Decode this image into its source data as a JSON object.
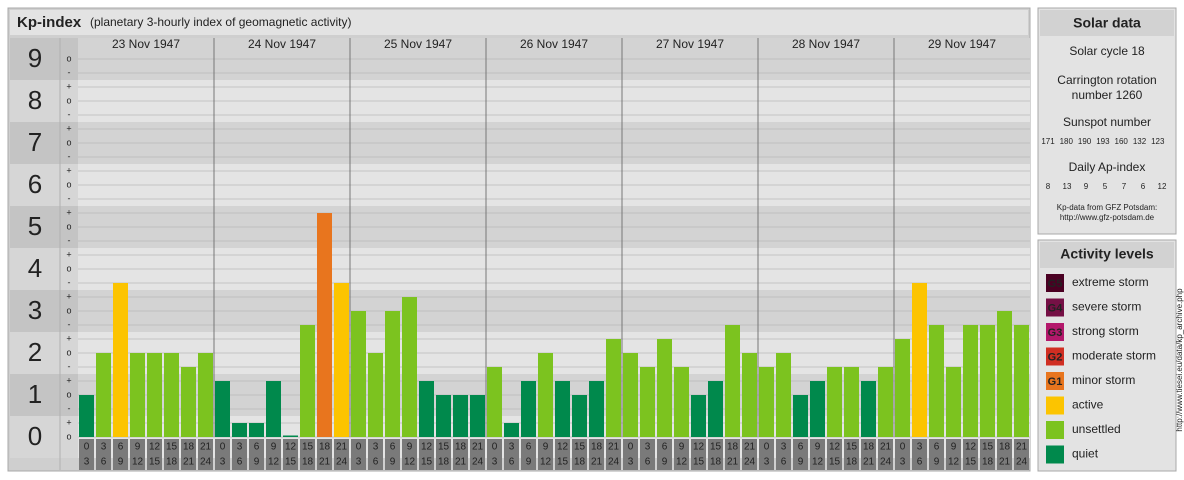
{
  "chart_data": {
    "type": "bar",
    "title": "Kp-index",
    "subtitle": "(planetary 3-hourly index of geomagnetic activity)",
    "ylim": [
      0,
      9.5
    ],
    "yticks": [
      0,
      1,
      2,
      3,
      4,
      5,
      6,
      7,
      8,
      9
    ],
    "minor_yticks": [
      {
        "value": 0,
        "label": "o"
      },
      {
        "value": 0.333,
        "label": "+"
      },
      {
        "value": 0.667,
        "label": "-"
      },
      {
        "value": 1,
        "label": "o"
      },
      {
        "value": 1.333,
        "label": "+"
      },
      {
        "value": 1.667,
        "label": "-"
      },
      {
        "value": 2,
        "label": "o"
      },
      {
        "value": 2.333,
        "label": "+"
      },
      {
        "value": 2.667,
        "label": "-"
      },
      {
        "value": 3,
        "label": "o"
      },
      {
        "value": 3.333,
        "label": "+"
      },
      {
        "value": 3.667,
        "label": "-"
      },
      {
        "value": 4,
        "label": "o"
      },
      {
        "value": 4.333,
        "label": "+"
      },
      {
        "value": 4.667,
        "label": "-"
      },
      {
        "value": 5,
        "label": "o"
      },
      {
        "value": 5.333,
        "label": "+"
      },
      {
        "value": 5.667,
        "label": "-"
      },
      {
        "value": 6,
        "label": "o"
      },
      {
        "value": 6.333,
        "label": "+"
      },
      {
        "value": 6.667,
        "label": "-"
      },
      {
        "value": 7,
        "label": "o"
      },
      {
        "value": 7.333,
        "label": "+"
      },
      {
        "value": 7.667,
        "label": "-"
      },
      {
        "value": 8,
        "label": "o"
      },
      {
        "value": 8.333,
        "label": "+"
      },
      {
        "value": 8.667,
        "label": "-"
      },
      {
        "value": 9,
        "label": "o"
      }
    ],
    "grid": true,
    "hour_starts": [
      0,
      3,
      6,
      9,
      12,
      15,
      18,
      21
    ],
    "hour_ends": [
      3,
      6,
      9,
      12,
      15,
      18,
      21,
      24
    ],
    "series": [
      {
        "name": "23 Nov 1947",
        "values": [
          1,
          2,
          3.667,
          2,
          2,
          2,
          1.667,
          2
        ],
        "colors": [
          "#00894c",
          "#7cc31f",
          "#fcc400",
          "#7cc31f",
          "#7cc31f",
          "#7cc31f",
          "#7cc31f",
          "#7cc31f"
        ]
      },
      {
        "name": "24 Nov 1947",
        "values": [
          1.333,
          0.333,
          0.333,
          1.333,
          0,
          2.667,
          5.333,
          3.667
        ],
        "colors": [
          "#00894c",
          "#00894c",
          "#00894c",
          "#00894c",
          "#00894c",
          "#7cc31f",
          "#e8751e",
          "#fcc400"
        ]
      },
      {
        "name": "25 Nov 1947",
        "values": [
          3,
          2,
          3,
          3.333,
          1.333,
          1,
          1,
          1
        ],
        "colors": [
          "#7cc31f",
          "#7cc31f",
          "#7cc31f",
          "#7cc31f",
          "#00894c",
          "#00894c",
          "#00894c",
          "#00894c"
        ]
      },
      {
        "name": "26 Nov 1947",
        "values": [
          1.667,
          0.333,
          1.333,
          2,
          1.333,
          1,
          1.333,
          2.333
        ],
        "colors": [
          "#7cc31f",
          "#00894c",
          "#00894c",
          "#7cc31f",
          "#00894c",
          "#00894c",
          "#00894c",
          "#7cc31f"
        ]
      },
      {
        "name": "27 Nov 1947",
        "values": [
          2,
          1.667,
          2.333,
          1.667,
          1,
          1.333,
          2.667,
          2
        ],
        "colors": [
          "#7cc31f",
          "#7cc31f",
          "#7cc31f",
          "#7cc31f",
          "#00894c",
          "#00894c",
          "#7cc31f",
          "#7cc31f"
        ]
      },
      {
        "name": "28 Nov 1947",
        "values": [
          1.667,
          2,
          1,
          1.333,
          1.667,
          1.667,
          1.333,
          1.667
        ],
        "colors": [
          "#7cc31f",
          "#7cc31f",
          "#00894c",
          "#00894c",
          "#7cc31f",
          "#7cc31f",
          "#00894c",
          "#7cc31f"
        ]
      },
      {
        "name": "29 Nov 1947",
        "values": [
          2.333,
          3.667,
          2.667,
          1.667,
          2.667,
          2.667,
          3,
          2.667
        ],
        "colors": [
          "#7cc31f",
          "#fcc400",
          "#7cc31f",
          "#7cc31f",
          "#7cc31f",
          "#7cc31f",
          "#7cc31f",
          "#7cc31f"
        ]
      }
    ],
    "legend": {
      "title": "Activity levels",
      "items": [
        {
          "badge": "G5",
          "label": "extreme storm",
          "color": "#4a0022"
        },
        {
          "badge": "G4",
          "label": "severe storm",
          "color": "#751045"
        },
        {
          "badge": "G3",
          "label": "strong storm",
          "color": "#b3186b"
        },
        {
          "badge": "G2",
          "label": "moderate storm",
          "color": "#d02e22"
        },
        {
          "badge": "G1",
          "label": "minor storm",
          "color": "#e8751e"
        },
        {
          "label": "active",
          "color": "#fcc400"
        },
        {
          "label": "unsettled",
          "color": "#7cc31f"
        },
        {
          "label": "quiet",
          "color": "#00894c"
        }
      ]
    }
  },
  "solar_data": {
    "title": "Solar data",
    "cycle": "Solar cycle 18",
    "carrington": [
      "Carrington rotation",
      "number 1260"
    ],
    "sunspot_title": "Sunspot number",
    "sunspot_numbers": [
      171,
      180,
      190,
      193,
      160,
      132,
      123
    ],
    "ap_title": "Daily Ap-index",
    "ap_values": [
      8,
      13,
      9,
      5,
      7,
      6,
      12
    ],
    "source": [
      "Kp-data from GFZ Potsdam:",
      "http://www.gfz-potsdam.de"
    ]
  },
  "watermark": "http://www.tiesei.eu/data/kp_archive.php"
}
